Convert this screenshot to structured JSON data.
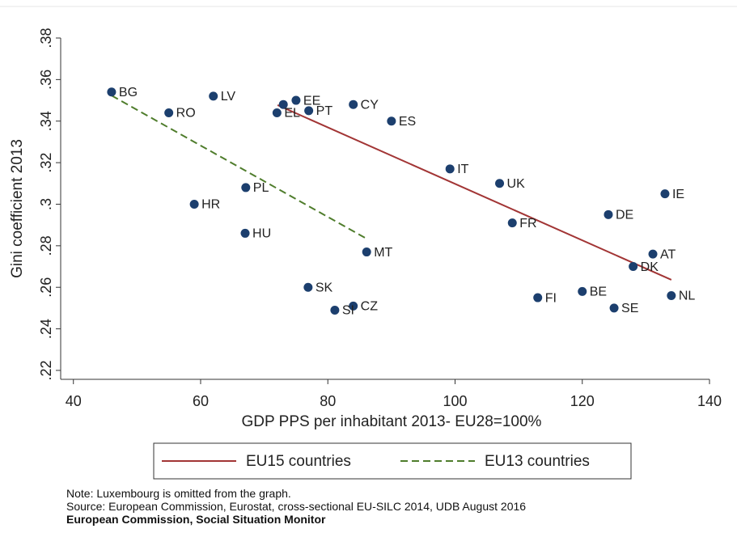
{
  "chart_data": {
    "type": "scatter",
    "x_label": "GDP PPS per inhabitant 2013- EU28=100%",
    "y_label": "Gini coefficient 2013",
    "xlim": [
      38,
      140
    ],
    "xticks": [
      40,
      60,
      80,
      100,
      120,
      140
    ],
    "ylim": [
      0.2157,
      0.38
    ],
    "yticks": [
      {
        "value": 0.22,
        "label": ".22"
      },
      {
        "value": 0.24,
        "label": ".24"
      },
      {
        "value": 0.26,
        "label": ".26"
      },
      {
        "value": 0.28,
        "label": ".28"
      },
      {
        "value": 0.3,
        "label": ".3"
      },
      {
        "value": 0.32,
        "label": ".32"
      },
      {
        "value": 0.34,
        "label": ".34"
      },
      {
        "value": 0.36,
        "label": ".36"
      },
      {
        "value": 0.38,
        "label": ".38"
      }
    ],
    "points": {
      "color": "#1c3f6e",
      "labels": [
        "BG",
        "RO",
        "LV",
        "EE",
        null,
        "EL",
        "PT",
        "CY",
        "ES",
        "IT",
        "UK",
        "IE",
        "PL",
        "HR",
        "DE",
        "FR",
        "HU",
        "MT",
        "AT",
        "DK",
        "SK",
        "NL",
        "BE",
        "FI",
        "SE",
        "CZ",
        "SI"
      ],
      "x": [
        46,
        55,
        62,
        75,
        73,
        72,
        77,
        84,
        90,
        99.2,
        107,
        133,
        67.1,
        59,
        124.1,
        109,
        67,
        86.1,
        131.1,
        128,
        76.9,
        134,
        120,
        113,
        125,
        84,
        81.1
      ],
      "values": [
        0.354,
        0.344,
        0.352,
        0.35,
        0.348,
        0.344,
        0.345,
        0.348,
        0.34,
        0.317,
        0.31,
        0.305,
        0.308,
        0.3,
        0.295,
        0.291,
        0.286,
        0.277,
        0.276,
        0.27,
        0.26,
        0.256,
        0.258,
        0.255,
        0.25,
        0.251,
        0.249
      ]
    },
    "series": [
      {
        "name": "EU15 countries",
        "color": "#a23535",
        "dash": false,
        "x": [
          72.1,
          134
        ],
        "values": [
          0.3477,
          0.2636
        ]
      },
      {
        "name": "EU13 countries",
        "color": "#4f7d2c",
        "dash": true,
        "x": [
          46,
          86.1
        ],
        "values": [
          0.3523,
          0.2834
        ]
      }
    ],
    "notes": [
      "Note: Luxembourg is omitted from the graph.",
      "Source: European Commission, Eurostat, cross-sectional EU-SILC 2014, UDB August 2016",
      "European Commission, Social Situation Monitor"
    ]
  }
}
